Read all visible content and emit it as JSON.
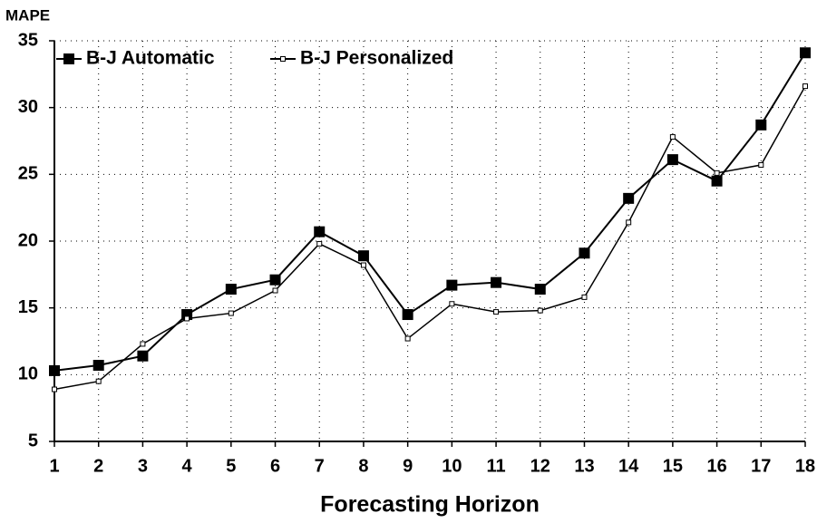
{
  "chart_data": {
    "type": "line",
    "y_label": "MAPE",
    "x_label": "Forecasting Horizon",
    "categories": [
      "1",
      "2",
      "3",
      "4",
      "5",
      "6",
      "7",
      "8",
      "9",
      "10",
      "11",
      "12",
      "13",
      "14",
      "15",
      "16",
      "17",
      "18"
    ],
    "series": [
      {
        "name": "B-J Automatic",
        "color": "#000000",
        "marker": "filled-square",
        "values": [
          10.3,
          10.7,
          11.4,
          14.5,
          16.4,
          17.1,
          20.7,
          18.9,
          14.5,
          16.7,
          16.9,
          16.4,
          19.1,
          23.2,
          26.1,
          24.5,
          28.7,
          34.1
        ]
      },
      {
        "name": "B-J Personalized",
        "color": "#000000",
        "marker": "hollow-square",
        "values": [
          8.9,
          9.5,
          12.3,
          14.2,
          14.6,
          16.3,
          19.8,
          18.2,
          12.7,
          15.3,
          14.7,
          14.8,
          15.8,
          21.4,
          27.8,
          25.1,
          25.7,
          31.6
        ]
      }
    ],
    "ylim": [
      5,
      35
    ],
    "yticks": [
      5,
      10,
      15,
      20,
      25,
      30,
      35
    ],
    "grid": true,
    "legend": "top-left"
  }
}
